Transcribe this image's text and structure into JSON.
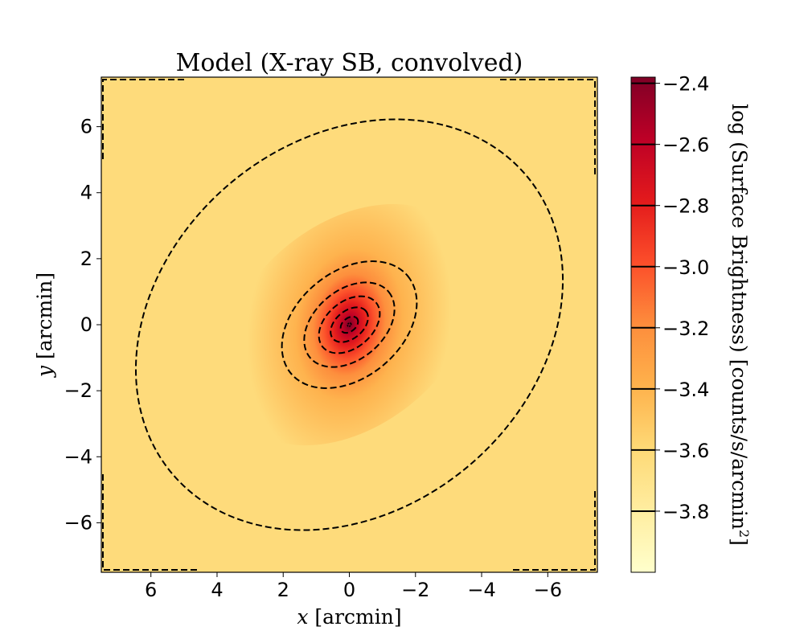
{
  "chart_data": {
    "type": "heatmap",
    "title": "Model (X-ray SB, convolved)",
    "xlabel_var": "x",
    "xlabel_unit": " [arcmin]",
    "ylabel_var": "y",
    "ylabel_unit": " [arcmin]",
    "colorbar_label_main": "log  (Surface Brightness) [counts/s/arcmin",
    "colorbar_label_sup": "2",
    "colorbar_label_close": "]",
    "xlim": [
      7.5,
      -7.5
    ],
    "ylim": [
      -7.5,
      7.5
    ],
    "x_ticks": [
      6,
      4,
      2,
      0,
      -2,
      -4,
      -6
    ],
    "x_tick_labels": [
      "6",
      "4",
      "2",
      "0",
      "−2",
      "−4",
      "−6"
    ],
    "y_ticks": [
      6,
      4,
      2,
      0,
      -2,
      -4,
      -6
    ],
    "y_tick_labels": [
      "6",
      "4",
      "2",
      "0",
      "−2",
      "−4",
      "−6"
    ],
    "colorbar_range": [
      -4.0,
      -2.38
    ],
    "colorbar_ticks": [
      -2.4,
      -2.6,
      -2.8,
      -3.0,
      -3.2,
      -3.4,
      -3.6,
      -3.8
    ],
    "colorbar_tick_labels": [
      "−2.4",
      "−2.6",
      "−2.8",
      "−3.0",
      "−3.2",
      "−3.4",
      "−3.6",
      "−3.8"
    ],
    "colormap": "YlOrRd",
    "background_level": -3.62,
    "contour_levels": [
      -3.6,
      -3.4,
      -3.2,
      -3.0,
      -2.8,
      -2.6,
      -2.4
    ],
    "center": [
      0,
      0
    ],
    "contours": [
      {
        "level": -3.6,
        "semi_major": 7.0,
        "semi_minor": 5.6,
        "angle_deg": -40
      },
      {
        "level": -3.4,
        "semi_major": 2.3,
        "semi_minor": 1.6,
        "angle_deg": -40
      },
      {
        "level": -3.2,
        "semi_major": 1.55,
        "semi_minor": 1.05,
        "angle_deg": -40
      },
      {
        "level": -3.0,
        "semi_major": 1.05,
        "semi_minor": 0.7,
        "angle_deg": -40
      },
      {
        "level": -2.8,
        "semi_major": 0.65,
        "semi_minor": 0.42,
        "angle_deg": -40
      },
      {
        "level": -2.6,
        "semi_major": 0.3,
        "semi_minor": 0.2,
        "angle_deg": -40
      },
      {
        "level": -2.4,
        "semi_major": 0.06,
        "semi_minor": 0.045,
        "angle_deg": -40
      }
    ],
    "contour_style": "dashed black"
  }
}
